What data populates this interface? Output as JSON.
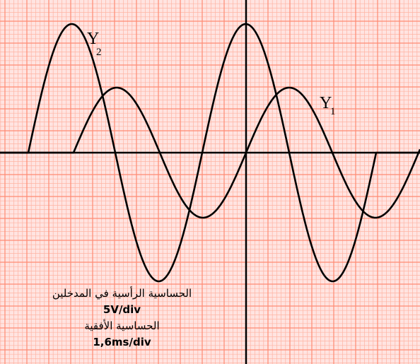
{
  "labels": {
    "y2_letter": "Y",
    "y2_sub": "2",
    "y1_letter": "Y",
    "y1_sub": "1"
  },
  "settings": {
    "vertical_title": "الحساسية الرأسية في المدخلين",
    "vertical_value": "5V/div",
    "horizontal_title": "الحساسية الأفقية",
    "horizontal_value": "1,6ms/div"
  },
  "colors": {
    "background": "#ffe4e1",
    "minor_grid": "#ffb3a3",
    "major_grid": "#ff8a73",
    "trace": "#000000"
  }
}
